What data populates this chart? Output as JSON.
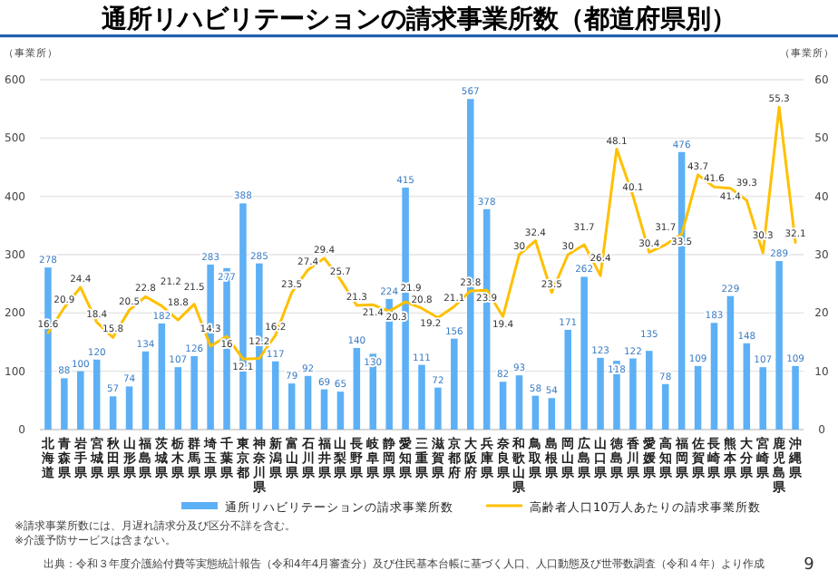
{
  "chart_data": {
    "type": "bar",
    "title": "通所リハビリテーションの請求事業所数（都道府県別）",
    "ylabel": "（事業所）",
    "y2label": "（事業所）",
    "categories": [
      "北海道",
      "青森県",
      "岩手県",
      "宮城県",
      "秋田県",
      "山形県",
      "福島県",
      "茨城県",
      "栃木県",
      "群馬県",
      "埼玉県",
      "千葉県",
      "東京都",
      "神奈川県",
      "新潟県",
      "富山県",
      "石川県",
      "福井県",
      "山梨県",
      "長野県",
      "岐阜県",
      "静岡県",
      "愛知県",
      "三重県",
      "滋賀県",
      "京都府",
      "大阪府",
      "兵庫県",
      "奈良県",
      "和歌山県",
      "鳥取県",
      "島根県",
      "岡山県",
      "広島県",
      "山口県",
      "徳島県",
      "香川県",
      "愛媛県",
      "高知県",
      "福岡県",
      "佐賀県",
      "長崎県",
      "熊本県",
      "大分県",
      "宮崎県",
      "鹿児島県",
      "沖縄県"
    ],
    "series": [
      {
        "name": "通所リハビリテーションの請求事業所数",
        "color": "#5db0f5",
        "values": [
          278,
          88,
          100,
          120,
          57,
          74,
          134,
          182,
          107,
          126,
          283,
          277,
          388,
          285,
          117,
          79,
          92,
          69,
          65,
          140,
          130,
          224,
          415,
          111,
          72,
          156,
          567,
          378,
          82,
          93,
          58,
          54,
          171,
          262,
          123,
          118,
          122,
          135,
          78,
          476,
          109,
          183,
          229,
          148,
          107,
          289,
          109
        ]
      },
      {
        "name": "高齢者人口10万人あたりの請求事業所数",
        "type": "line",
        "axis": "y2",
        "color": "#ffc000",
        "values": [
          16.6,
          20.9,
          24.4,
          18.4,
          15.8,
          20.5,
          22.8,
          21.2,
          18.8,
          21.5,
          14.3,
          16,
          12.1,
          12.2,
          16.2,
          23.5,
          27.4,
          29.4,
          25.7,
          21.3,
          21.4,
          20.3,
          21.9,
          20.8,
          19.2,
          21.1,
          23.8,
          23.9,
          19.4,
          30,
          32.4,
          23.5,
          30,
          31.7,
          26.4,
          48.1,
          40.1,
          30.4,
          31.7,
          33.5,
          43.7,
          41.6,
          41.4,
          39.3,
          30.3,
          55.3,
          32.1
        ]
      }
    ],
    "ylim": [
      0,
      600
    ],
    "yticks": [
      0,
      100,
      200,
      300,
      400,
      500,
      600
    ],
    "y2lim": [
      0,
      60
    ],
    "y2ticks": [
      0,
      10,
      20,
      30,
      40,
      50,
      60
    ],
    "grid": "y",
    "legend": "bottom",
    "data_labels": true,
    "annotations": [
      "※請求事業所数には、月遅れ請求分及び区分不詳を含む。",
      "※介護予防サービスは含まない。",
      "出典：令和３年度介護給付費等実態統計報告（令和4年4月審査分）及び住民基本台帳に基づく人口、人口動態及び世帯数調査（令和４年）より作成",
      "9"
    ]
  }
}
